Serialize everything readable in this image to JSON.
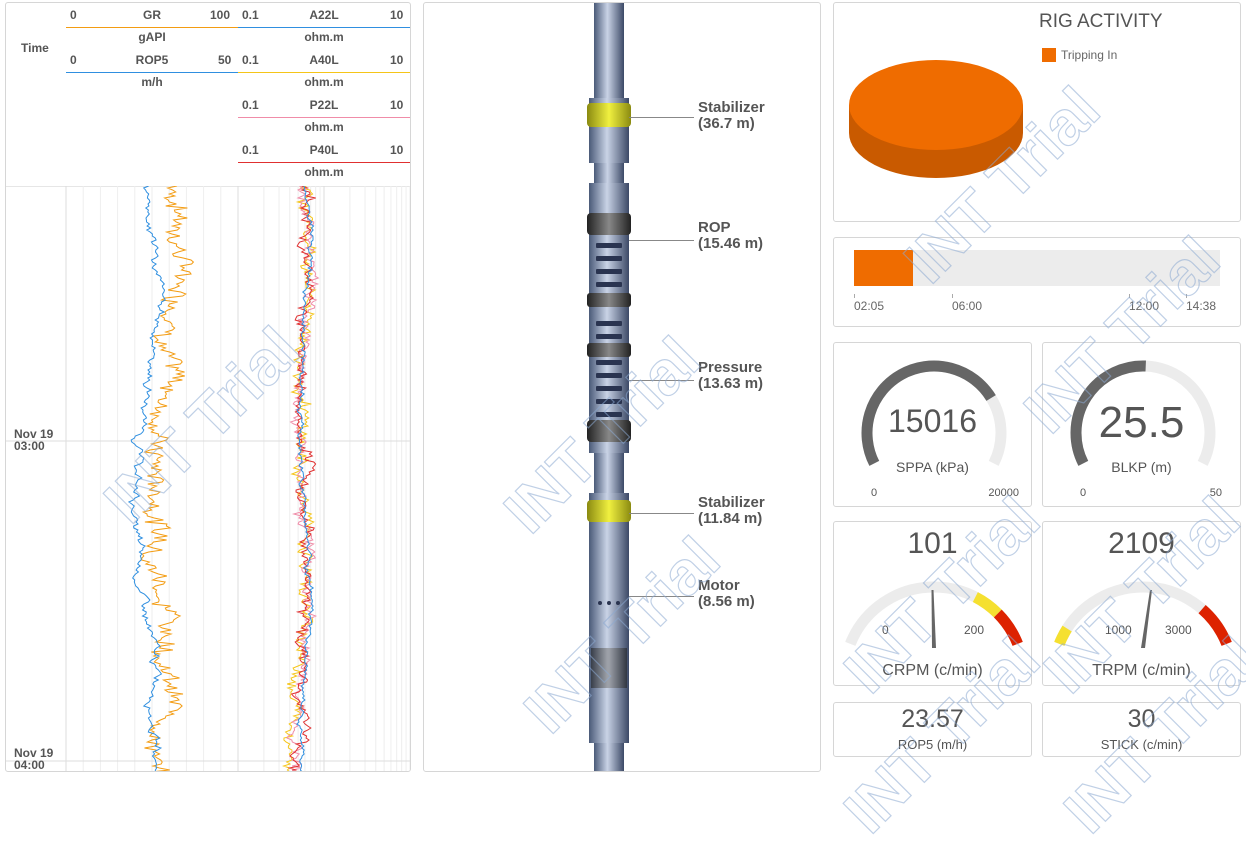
{
  "log": {
    "time_label": "Time",
    "tracks": [
      {
        "curves": [
          {
            "name": "GR",
            "min": "0",
            "max": "100",
            "unit": "gAPI",
            "color": "#f39c12"
          },
          {
            "name": "ROP5",
            "min": "0",
            "max": "50",
            "unit": "m/h",
            "color": "#2f8fe0"
          }
        ]
      },
      {
        "curves": [
          {
            "name": "A22L",
            "min": "0.1",
            "max": "10",
            "unit": "ohm.m",
            "color": "#2f8fe0"
          },
          {
            "name": "A40L",
            "min": "0.1",
            "max": "10",
            "unit": "ohm.m",
            "color": "#f5c518"
          },
          {
            "name": "P22L",
            "min": "0.1",
            "max": "10",
            "unit": "ohm.m",
            "color": "#f08ca8"
          },
          {
            "name": "P40L",
            "min": "0.1",
            "max": "10",
            "unit": "ohm.m",
            "color": "#e03030"
          }
        ]
      }
    ],
    "time_ticks": [
      {
        "date": "Nov 19",
        "time": "03:00"
      },
      {
        "date": "Nov 19",
        "time": "04:00"
      }
    ]
  },
  "bha": {
    "components": [
      {
        "name": "Stabilizer",
        "depth": "(36.7 m)"
      },
      {
        "name": "ROP",
        "depth": "(15.46 m)"
      },
      {
        "name": "Pressure",
        "depth": "(13.63 m)"
      },
      {
        "name": "Stabilizer",
        "depth": "(11.84 m)"
      },
      {
        "name": "Motor",
        "depth": "(8.56 m)"
      }
    ]
  },
  "rig_activity": {
    "title": "RIG ACTIVITY",
    "legend": "Tripping In",
    "color": "#ef6c00"
  },
  "timeline": {
    "ticks": [
      "02:05",
      "06:00",
      "12:00",
      "14:38"
    ],
    "fill_fraction": 0.16,
    "color": "#ef6c00"
  },
  "gauges": [
    {
      "value": "15016",
      "label": "SPPA (kPa)",
      "min": "0",
      "max": "20000",
      "fraction": 0.75
    },
    {
      "value": "25.5",
      "label": "BLKP (m)",
      "min": "0",
      "max": "50",
      "fraction": 0.51
    },
    {
      "value": "101",
      "label": "CRPM (c/min)",
      "min": "0",
      "max": "200"
    },
    {
      "value": "2109",
      "label": "TRPM (c/min)",
      "min": "1000",
      "max": "3000"
    }
  ],
  "readouts": [
    {
      "value": "23.57",
      "label": "ROP5 (m/h)"
    },
    {
      "value": "30",
      "label": "STICK (c/min)"
    }
  ],
  "watermark": "INT Trial"
}
